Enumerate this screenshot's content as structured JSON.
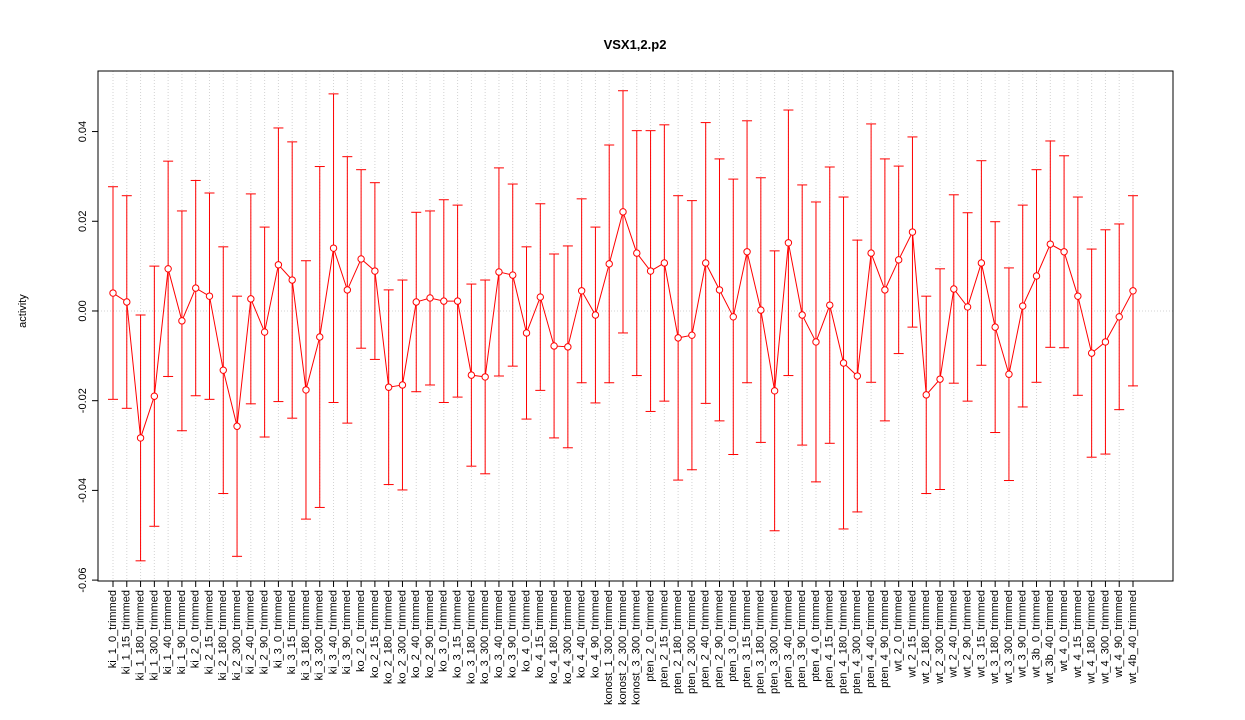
{
  "chart_data": {
    "type": "errorline",
    "title": "VSX1,2.p2",
    "ylabel": "activity",
    "categories": [
      "ki_1_0_trimmed",
      "ki_1_15_trimmed",
      "ki_1_180_trimmed",
      "ki_1_300_trimmed",
      "ki_1_40_trimmed",
      "ki_1_90_trimmed",
      "ki_2_0_trimmed",
      "ki_2_15_trimmed",
      "ki_2_180_trimmed",
      "ki_2_300_trimmed",
      "ki_2_40_trimmed",
      "ki_2_90_trimmed",
      "ki_3_0_trimmed",
      "ki_3_15_trimmed",
      "ki_3_180_trimmed",
      "ki_3_300_trimmed",
      "ki_3_40_trimmed",
      "ki_3_90_trimmed",
      "ko_2_0_trimmed",
      "ko_2_15_trimmed",
      "ko_2_180_trimmed",
      "ko_2_300_trimmed",
      "ko_2_40_trimmed",
      "ko_2_90_trimmed",
      "ko_3_0_trimmed",
      "ko_3_15_trimmed",
      "ko_3_180_trimmed",
      "ko_3_300_trimmed",
      "ko_3_40_trimmed",
      "ko_3_90_trimmed",
      "ko_4_0_trimmed",
      "ko_4_15_trimmed",
      "ko_4_180_trimmed",
      "ko_4_300_trimmed",
      "ko_4_40_trimmed",
      "ko_4_90_trimmed",
      "konost_1_300_trimmed",
      "konost_2_300_trimmed",
      "konost_3_300_trimmed",
      "pten_2_0_trimmed",
      "pten_2_15_trimmed",
      "pten_2_180_trimmed",
      "pten_2_300_trimmed",
      "pten_2_40_trimmed",
      "pten_2_90_trimmed",
      "pten_3_0_trimmed",
      "pten_3_15_trimmed",
      "pten_3_180_trimmed",
      "pten_3_300_trimmed",
      "pten_3_40_trimmed",
      "pten_3_90_trimmed",
      "pten_4_0_trimmed",
      "pten_4_15_trimmed",
      "pten_4_180_trimmed",
      "pten_4_300_trimmed",
      "pten_4_40_trimmed",
      "pten_4_90_trimmed",
      "wt_2_0_trimmed",
      "wt_2_15_trimmed",
      "wt_2_180_trimmed",
      "wt_2_300_trimmed",
      "wt_2_40_trimmed",
      "wt_2_90_trimmed",
      "wt_3_15_trimmed",
      "wt_3_180_trimmed",
      "wt_3_300_trimmed",
      "wt_3_90_trimmed",
      "wt_3b_0_trimmed",
      "wt_3b_40_trimmed",
      "wt_4_0_trimmed",
      "wt_4_15_trimmed",
      "wt_4_180_trimmed",
      "wt_4_300_trimmed",
      "wt_4_90_trimmed",
      "wt_4b_40_trimmed"
    ],
    "values": [
      0.004,
      0.002,
      -0.0283,
      -0.019,
      0.0094,
      -0.0022,
      0.0051,
      0.0033,
      -0.0132,
      -0.0257,
      0.0027,
      -0.0047,
      0.0103,
      0.0069,
      -0.0176,
      -0.0058,
      0.014,
      0.0047,
      0.0116,
      0.0089,
      -0.017,
      -0.0165,
      0.002,
      0.0029,
      0.0022,
      0.0022,
      -0.0143,
      -0.0147,
      0.0087,
      0.008,
      -0.0049,
      0.0031,
      -0.0078,
      -0.008,
      0.0045,
      -0.0009,
      0.0105,
      0.0221,
      0.0129,
      0.0089,
      0.0107,
      -0.006,
      -0.0054,
      0.0107,
      0.0047,
      -0.0013,
      0.0132,
      0.0002,
      -0.0178,
      0.0152,
      -0.0009,
      -0.0069,
      0.0013,
      -0.0116,
      -0.0145,
      0.0129,
      0.0047,
      0.0114,
      0.0176,
      -0.0187,
      -0.0152,
      0.0049,
      0.0009,
      0.0107,
      -0.0036,
      -0.0141,
      0.0011,
      0.0078,
      0.0149,
      0.0132,
      0.0033,
      -0.0094,
      -0.0069,
      -0.0013,
      0.0045
    ],
    "errors": [
      0.0237,
      0.0237,
      0.0274,
      0.029,
      0.024,
      0.0245,
      0.024,
      0.023,
      0.0275,
      0.029,
      0.0234,
      0.0234,
      0.0305,
      0.0308,
      0.0288,
      0.038,
      0.0344,
      0.0297,
      0.0199,
      0.0197,
      0.0217,
      0.0234,
      0.02,
      0.0194,
      0.0226,
      0.0214,
      0.0203,
      0.0216,
      0.0232,
      0.0203,
      0.0192,
      0.0208,
      0.0205,
      0.0225,
      0.0205,
      0.0196,
      0.0265,
      0.027,
      0.0273,
      0.0313,
      0.0308,
      0.0317,
      0.03,
      0.0313,
      0.0292,
      0.0307,
      0.0292,
      0.0295,
      0.0312,
      0.0296,
      0.029,
      0.0312,
      0.0308,
      0.037,
      0.0303,
      0.0288,
      0.0292,
      0.0209,
      0.0212,
      0.022,
      0.0246,
      0.021,
      0.021,
      0.0228,
      0.0235,
      0.0237,
      0.0225,
      0.0237,
      0.023,
      0.0214,
      0.0221,
      0.0232,
      0.025,
      0.0207,
      0.0212
    ],
    "color": "#ff0000",
    "ylim": [
      -0.0602,
      0.0535
    ],
    "yticks": [
      -0.06,
      -0.04,
      -0.02,
      {
        "value": 0,
        "label": "0.00"
      },
      0.02,
      0.04
    ],
    "grid": true,
    "reference_line": 0
  }
}
